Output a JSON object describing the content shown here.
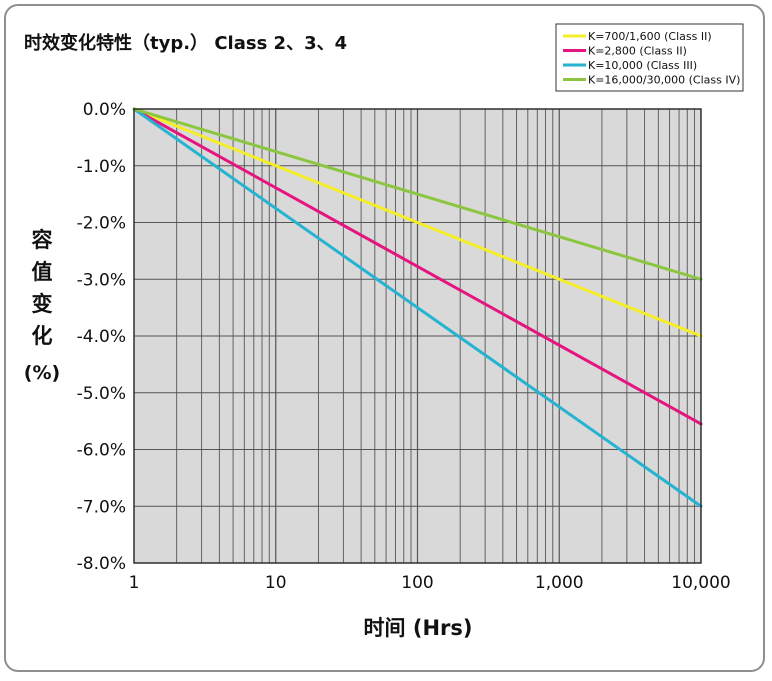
{
  "chart_data": {
    "type": "line",
    "title": "时效变化特性（typ.） Class  2、3、4",
    "ylabel_chars": [
      "容",
      "值",
      "变",
      "化",
      "(%)"
    ],
    "xlabel": "时间 (Hrs)",
    "x_scale": "log",
    "xlim": [
      1,
      10000
    ],
    "ylim": [
      -8.0,
      0.0
    ],
    "x_ticks": [
      {
        "value": 1,
        "label": "1"
      },
      {
        "value": 10,
        "label": "10"
      },
      {
        "value": 100,
        "label": "100"
      },
      {
        "value": 1000,
        "label": "1,000"
      },
      {
        "value": 10000,
        "label": "10,000"
      }
    ],
    "y_ticks": [
      {
        "value": 0,
        "label": "0.0%"
      },
      {
        "value": -1,
        "label": "-1.0%"
      },
      {
        "value": -2,
        "label": "-2.0%"
      },
      {
        "value": -3,
        "label": "-3.0%"
      },
      {
        "value": -4,
        "label": "-4.0%"
      },
      {
        "value": -5,
        "label": "-5.0%"
      },
      {
        "value": -6,
        "label": "-6.0%"
      },
      {
        "value": -7,
        "label": "-7.0%"
      },
      {
        "value": -8,
        "label": "-8.0%"
      }
    ],
    "grid": true,
    "legend_position": "top-right",
    "series": [
      {
        "name": "K=700/1,600 (Class II)",
        "color": "#f4ee2a",
        "x": [
          1,
          10000
        ],
        "y": [
          0.0,
          -4.0
        ]
      },
      {
        "name": "K=2,800 (Class II)",
        "color": "#e5157f",
        "x": [
          1,
          10000
        ],
        "y": [
          0.0,
          -5.55
        ]
      },
      {
        "name": "K=10,000 (Class III)",
        "color": "#25b3d1",
        "x": [
          1,
          10000
        ],
        "y": [
          0.0,
          -7.0
        ]
      },
      {
        "name": "K=16,000/30,000 (Class IV)",
        "color": "#8cc63f",
        "x": [
          1,
          10000
        ],
        "y": [
          0.0,
          -3.0
        ]
      }
    ],
    "colors": {
      "plot_bg": "#d9d9d9",
      "grid": "#555555",
      "frame": "#8f8f8f"
    }
  }
}
